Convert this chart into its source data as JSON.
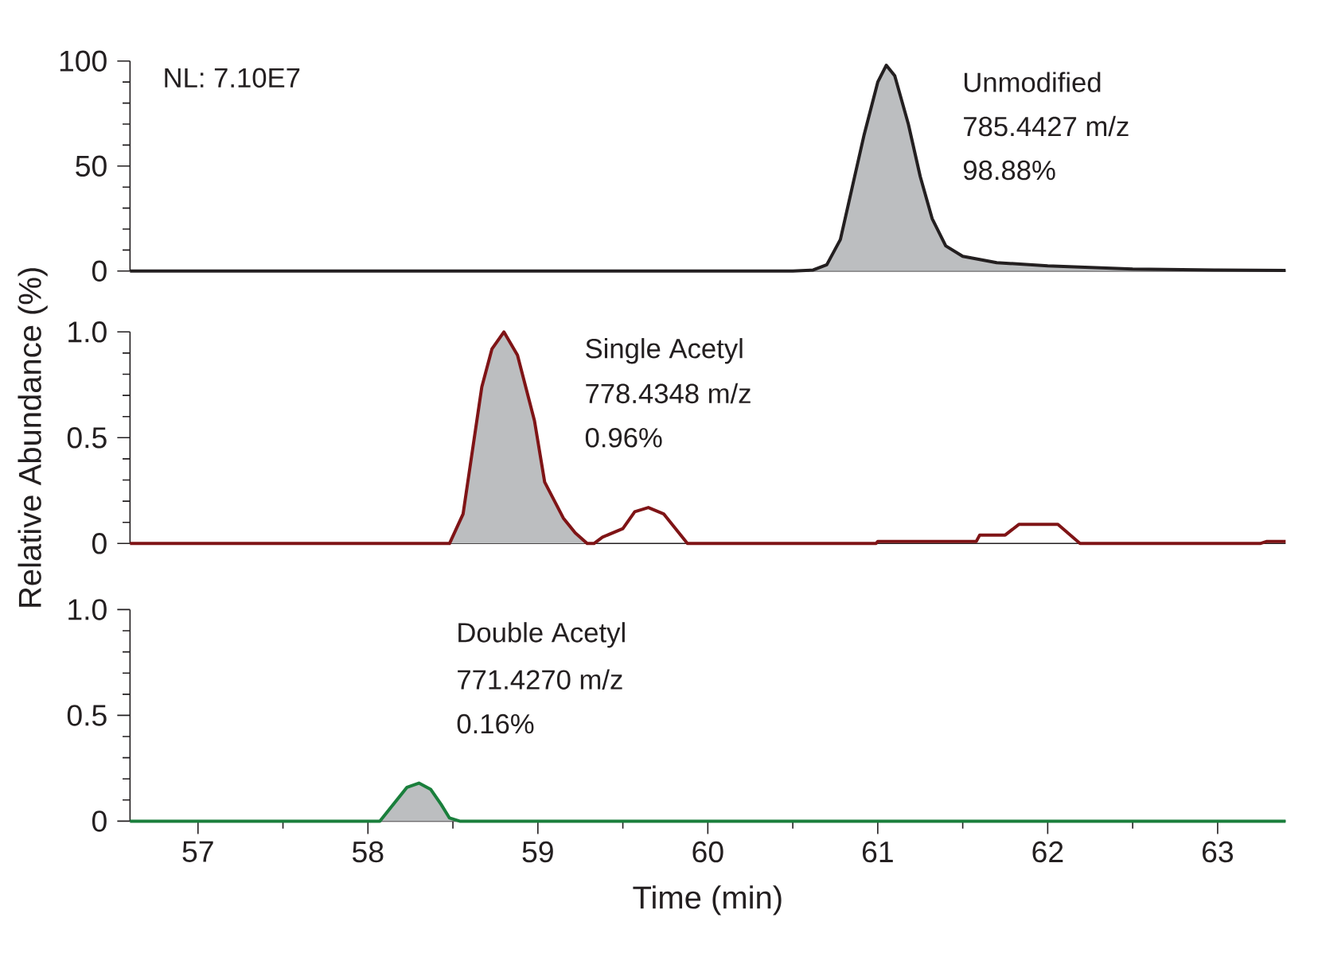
{
  "chart_data": [
    {
      "type": "line",
      "xlim": [
        56.6,
        63.4
      ],
      "ylim": [
        0,
        100
      ],
      "yticks": [
        0,
        50,
        100
      ],
      "tick_labels": "y",
      "annotations": [
        "NL: 7.10E7",
        "Unmodified",
        "785.4427 m/z",
        "98.88%"
      ],
      "series": [
        {
          "type": "area",
          "color": "#bcbec0",
          "x": [
            60.62,
            60.7,
            60.78,
            60.85,
            60.92,
            61.0,
            61.05,
            61.1,
            61.18,
            61.25,
            61.32,
            61.4,
            61.5,
            61.7,
            62.0,
            62.5,
            63.0,
            63.4
          ],
          "values": [
            0.5,
            3,
            15,
            40,
            65,
            90,
            98,
            93,
            70,
            45,
            25,
            12,
            7,
            4,
            2.5,
            1,
            0.5,
            0.3
          ]
        },
        {
          "color": "#231f20",
          "x": [
            56.6,
            60.5,
            60.62,
            60.7,
            60.78,
            60.85,
            60.92,
            61.0,
            61.05,
            61.1,
            61.18,
            61.25,
            61.32,
            61.4,
            61.5,
            61.7,
            62.0,
            62.5,
            63.0,
            63.4
          ],
          "values": [
            0,
            0,
            0.5,
            3,
            15,
            40,
            65,
            90,
            98,
            93,
            70,
            45,
            25,
            12,
            7,
            4,
            2.5,
            1,
            0.5,
            0.3
          ]
        }
      ]
    },
    {
      "type": "line",
      "xlim": [
        56.6,
        63.4
      ],
      "ylim": [
        0,
        1
      ],
      "yticks": [
        0,
        0.5,
        {
          "value": 1,
          "label": "1.0"
        }
      ],
      "tick_labels": "y",
      "ylabel": "Relative Abundance (%)",
      "annotations": [
        "Single Acetyl",
        "778.4348 m/z",
        "0.96%"
      ],
      "series": [
        {
          "type": "area",
          "color": "#bcbec0",
          "x": [
            58.48,
            58.56,
            58.67,
            58.73,
            58.8,
            58.88,
            58.98,
            59.04,
            59.15,
            59.22,
            59.29
          ],
          "values": [
            0,
            0.14,
            0.74,
            0.92,
            1.0,
            0.89,
            0.58,
            0.29,
            0.12,
            0.05,
            0
          ]
        },
        {
          "color": "#7f1416",
          "x": [
            56.6,
            58.48,
            58.56,
            58.67,
            58.73,
            58.8,
            58.88,
            58.98,
            59.04,
            59.15,
            59.22,
            59.29,
            59.33,
            59.38,
            59.5,
            59.57,
            59.65,
            59.74,
            59.8,
            59.88,
            60.99,
            61.0,
            61.29,
            61.37,
            61.58,
            61.6,
            61.75,
            61.83,
            62.06,
            62.19,
            63.25,
            63.29,
            63.4
          ],
          "values": [
            0,
            0,
            0.14,
            0.74,
            0.92,
            1.0,
            0.89,
            0.58,
            0.29,
            0.12,
            0.05,
            0,
            0,
            0.03,
            0.07,
            0.15,
            0.17,
            0.14,
            0.08,
            0,
            0,
            0.01,
            0.01,
            0.01,
            0.01,
            0.04,
            0.04,
            0.09,
            0.09,
            0,
            0,
            0.01,
            0.01
          ]
        }
      ]
    },
    {
      "type": "line",
      "xlim": [
        56.6,
        63.4
      ],
      "ylim": [
        0,
        1
      ],
      "yticks": [
        0,
        0.5,
        {
          "value": 1,
          "label": "1.0"
        }
      ],
      "xticks": [
        57,
        58,
        59,
        60,
        61,
        62,
        63
      ],
      "xlabel": "Time (min)",
      "annotations": [
        "Double Acetyl",
        "771.4270 m/z",
        "0.16%"
      ],
      "series": [
        {
          "type": "area",
          "color": "#bcbec0",
          "x": [
            58.07,
            58.15,
            58.23,
            58.3,
            58.37,
            58.43,
            58.48,
            58.54
          ],
          "values": [
            0,
            0.08,
            0.16,
            0.18,
            0.15,
            0.08,
            0.015,
            0
          ]
        },
        {
          "color": "#1a7f3c",
          "x": [
            56.6,
            58.07,
            58.15,
            58.23,
            58.3,
            58.37,
            58.43,
            58.48,
            58.54,
            63.4
          ],
          "values": [
            0,
            0,
            0.08,
            0.16,
            0.18,
            0.15,
            0.08,
            0.015,
            0,
            0
          ]
        }
      ]
    }
  ]
}
